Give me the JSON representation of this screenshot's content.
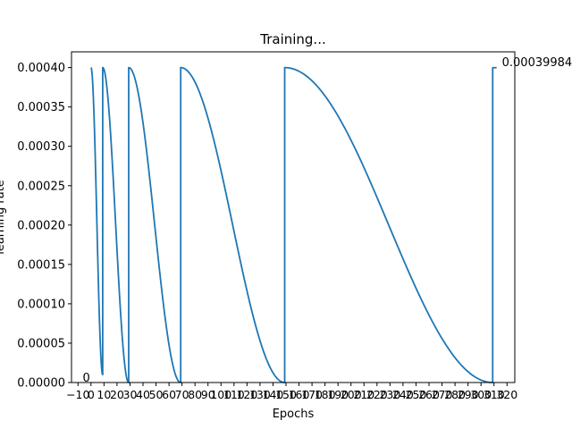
{
  "chart_data": {
    "type": "line",
    "title": "Training...",
    "xlabel": "Epochs",
    "ylabel": "learning rate",
    "xlim": [
      -15,
      326
    ],
    "ylim": [
      0,
      0.00042
    ],
    "grid": false,
    "line_color": "#1f77b4",
    "x_ticks": [
      -10,
      0,
      10,
      20,
      30,
      40,
      50,
      60,
      70,
      80,
      90,
      100,
      110,
      120,
      130,
      140,
      150,
      160,
      170,
      180,
      190,
      200,
      210,
      220,
      230,
      240,
      250,
      260,
      270,
      280,
      290,
      300,
      310,
      320
    ],
    "x_tick_labels": [
      "−10",
      "0",
      "10",
      "20",
      "30",
      "40",
      "50",
      "60",
      "70",
      "80",
      "90",
      "100",
      "110",
      "120",
      "130",
      "140",
      "150",
      "160",
      "170",
      "180",
      "190",
      "200",
      "210",
      "220",
      "230",
      "240",
      "250",
      "260",
      "270",
      "280",
      "290",
      "300",
      "310",
      "320"
    ],
    "y_ticks": [
      0,
      5e-05,
      0.0001,
      0.00015,
      0.0002,
      0.00025,
      0.0003,
      0.00035,
      0.0004
    ],
    "y_tick_labels": [
      "0.00000",
      "0.00005",
      "0.00010",
      "0.00015",
      "0.00020",
      "0.00025",
      "0.00030",
      "0.00035",
      "0.00040"
    ],
    "series": [
      {
        "cycles": [
          {
            "start": 0,
            "end": 9,
            "max": 0.0004,
            "min": 1e-05
          },
          {
            "start": 9,
            "end": 29,
            "max": 0.0004,
            "min": 0
          },
          {
            "start": 29,
            "end": 69,
            "max": 0.0004,
            "min": 0
          },
          {
            "start": 69,
            "end": 149,
            "max": 0.0004,
            "min": 0
          },
          {
            "start": 149,
            "end": 309,
            "max": 0.0004,
            "min": 0
          },
          {
            "start": 309,
            "end": 312,
            "max": 0.00039984,
            "min": 0.00039984
          }
        ]
      }
    ],
    "annotations": [
      {
        "text": "0",
        "x": 0,
        "y": 0
      },
      {
        "text": "0.00039984",
        "x": 312,
        "y": 0.00039984
      }
    ]
  }
}
